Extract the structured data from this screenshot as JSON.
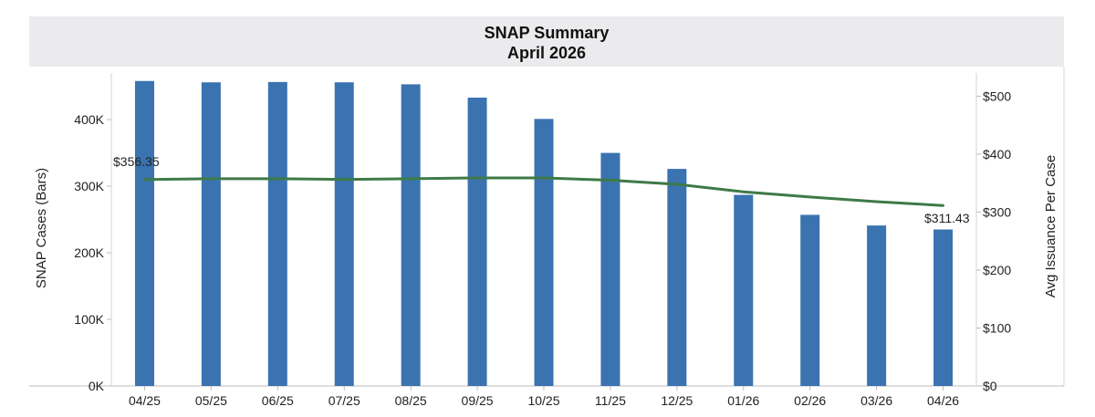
{
  "chart_data": {
    "type": "bar",
    "title": "SNAP Summary",
    "subtitle": "April 2026",
    "categories": [
      "04/25",
      "05/25",
      "06/25",
      "07/25",
      "08/25",
      "09/25",
      "10/25",
      "11/25",
      "12/25",
      "01/26",
      "02/26",
      "03/26",
      "04/26"
    ],
    "series": [
      {
        "name": "SNAP Cases (Bars)",
        "type": "bar",
        "axis": "left",
        "values": [
          458000,
          456000,
          456500,
          456000,
          453000,
          433000,
          401000,
          350000,
          326000,
          287000,
          257000,
          241000,
          235000
        ]
      },
      {
        "name": "Avg Issuance Per Case",
        "type": "line",
        "axis": "right",
        "values": [
          356.35,
          357.5,
          357.5,
          356.5,
          357.5,
          359,
          359,
          355,
          348,
          335,
          326,
          318,
          311.43
        ]
      }
    ],
    "y_left": {
      "label": "SNAP Cases (Bars)",
      "range": [
        0,
        470000
      ],
      "ticks": [
        {
          "value": 0,
          "label": "0K"
        },
        {
          "value": 100000,
          "label": "100K"
        },
        {
          "value": 200000,
          "label": "200K"
        },
        {
          "value": 300000,
          "label": "300K"
        },
        {
          "value": 400000,
          "label": "400K"
        }
      ]
    },
    "y_right": {
      "label": "Avg Issuance Per Case",
      "range": [
        0,
        540
      ],
      "ticks": [
        {
          "value": 0,
          "label": "$0"
        },
        {
          "value": 100,
          "label": "$100"
        },
        {
          "value": 200,
          "label": "$200"
        },
        {
          "value": 300,
          "label": "$300"
        },
        {
          "value": 400,
          "label": "$400"
        },
        {
          "value": 500,
          "label": "$500"
        }
      ]
    },
    "data_labels": {
      "first": "$356.35",
      "last": "$311.43"
    },
    "colors": {
      "bar": "#3a73b0",
      "line": "#3e7a47",
      "title_band": "#ebebee"
    },
    "grid": false,
    "legend": "none"
  }
}
